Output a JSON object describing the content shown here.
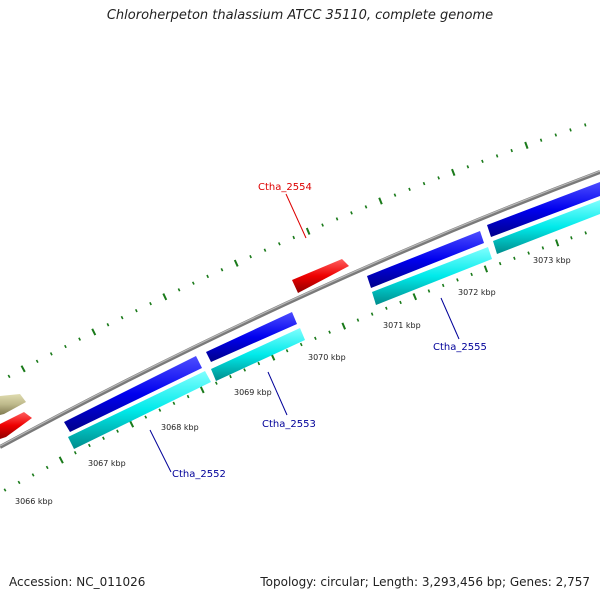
{
  "title": "Chloroherpeton thalassium ATCC 35110, complete genome",
  "footer": {
    "accession_label": "Accession:",
    "accession": "NC_011026",
    "summary": "Topology: circular; Length: 3,293,456 bp; Genes: 2,757"
  },
  "colors": {
    "backbone": "#888888",
    "tick": "#1a7a1a",
    "forward_cds": "#0000ee",
    "reverse_cds": "#00e5e5",
    "rna": "#ee0000",
    "other": "#bdb88a",
    "label_red": "#dd0000",
    "label_blue": "#000099"
  },
  "kbp_labels": [
    "3066 kbp",
    "3067 kbp",
    "3068 kbp",
    "3069 kbp",
    "3070 kbp",
    "3071 kbp",
    "3072 kbp",
    "3073 kbp"
  ],
  "gene_labels": [
    {
      "name": "Ctha_2554",
      "color": "red"
    },
    {
      "name": "Ctha_2555",
      "color": "blue"
    },
    {
      "name": "Ctha_2553",
      "color": "blue"
    },
    {
      "name": "Ctha_2552",
      "color": "blue"
    }
  ]
}
